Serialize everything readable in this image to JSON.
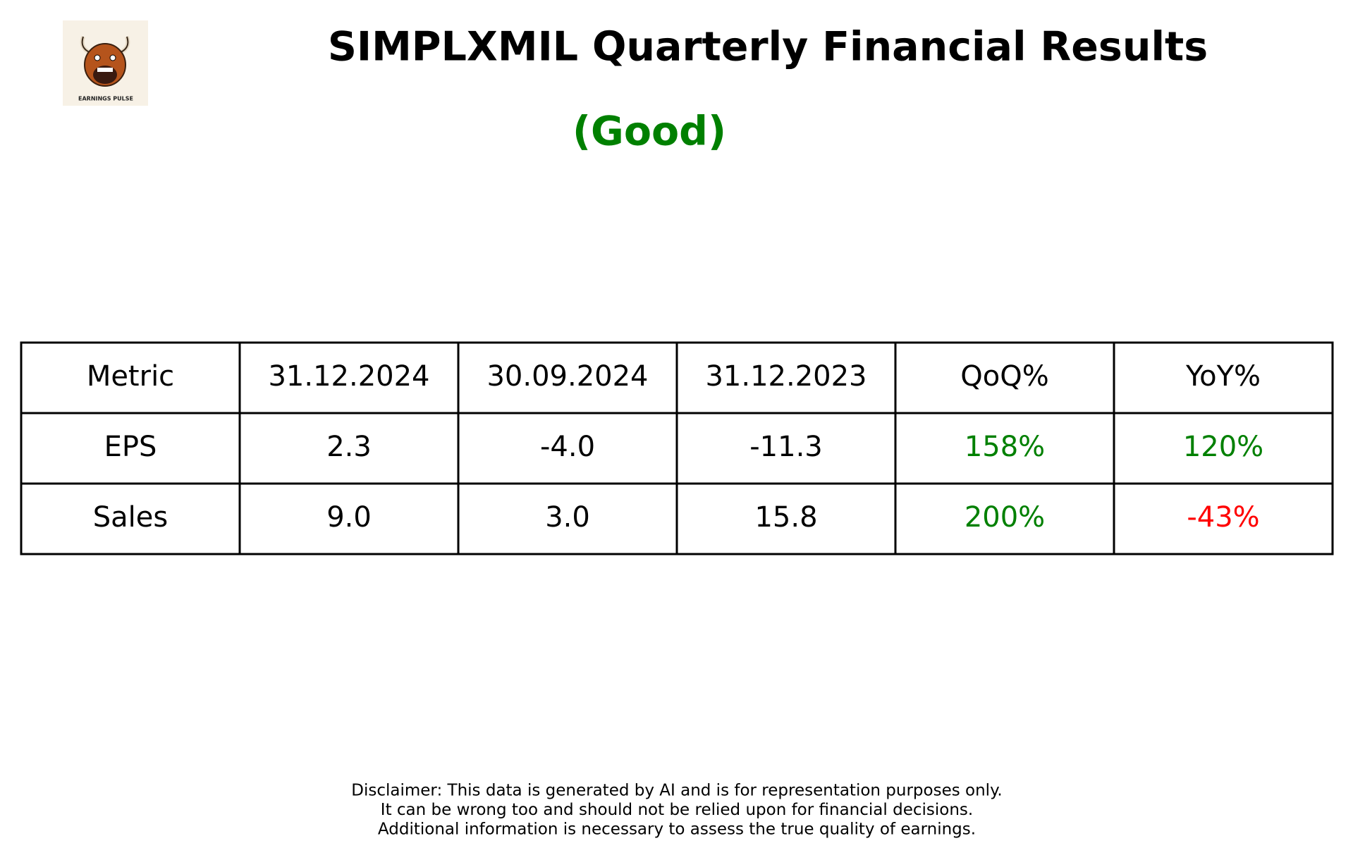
{
  "header": {
    "title": "SIMPLXMIL Quarterly Financial Results",
    "verdict": "(Good)",
    "verdict_color": "#008000"
  },
  "logo": {
    "label": "EARNINGS PULSE"
  },
  "table": {
    "columns": [
      "Metric",
      "31.12.2024",
      "30.09.2024",
      "31.12.2023",
      "QoQ%",
      "YoY%"
    ],
    "rows": [
      [
        "EPS",
        "2.3",
        "-4.0",
        "-11.3",
        "158%",
        "120%"
      ],
      [
        "Sales",
        "9.0",
        "3.0",
        "15.8",
        "200%",
        "-43%"
      ]
    ],
    "row_colors": [
      [
        "#000000",
        "#000000",
        "#000000",
        "#000000",
        "#008000",
        "#008000"
      ],
      [
        "#000000",
        "#000000",
        "#000000",
        "#000000",
        "#008000",
        "#ff0000"
      ]
    ]
  },
  "disclaimer": [
    "Disclaimer: This data is generated by AI and is for representation purposes only.",
    "It can be wrong too and should not be relied upon for financial decisions.",
    "Additional information is necessary to assess the true quality of earnings."
  ]
}
